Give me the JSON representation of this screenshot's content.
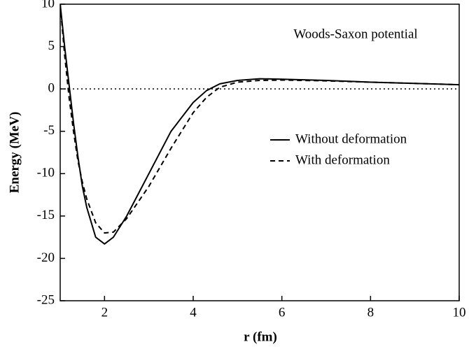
{
  "chart_data": {
    "type": "line",
    "annotation": "Woods-Saxon potential",
    "xlabel": "r (fm)",
    "ylabel": "Energy (MeV)",
    "x": [
      1,
      1.1,
      1.2,
      1.3,
      1.4,
      1.5,
      1.6,
      1.8,
      2.0,
      2.2,
      2.5,
      3,
      3.5,
      4,
      4.3,
      4.6,
      5,
      5.5,
      6,
      7,
      8,
      9,
      10
    ],
    "series": [
      {
        "name": "Without deformation",
        "color": "#000000",
        "dash": "solid",
        "values": [
          10,
          5,
          0.5,
          -4,
          -8,
          -11.5,
          -14,
          -17.5,
          -18.3,
          -17.5,
          -15,
          -10,
          -5,
          -1.6,
          -0.2,
          0.6,
          1.0,
          1.2,
          1.15,
          1.0,
          0.8,
          0.65,
          0.5
        ]
      },
      {
        "name": "With deformation",
        "color": "#000000",
        "dash": "dashed",
        "values": [
          10,
          4,
          -1,
          -5,
          -8.5,
          -11,
          -13,
          -15.8,
          -17,
          -16.9,
          -15.3,
          -11.5,
          -7,
          -2.8,
          -1,
          0.2,
          0.8,
          1.0,
          1.05,
          0.95,
          0.8,
          0.65,
          0.5
        ]
      }
    ],
    "hline": 0,
    "xlim": [
      1,
      10
    ],
    "xticks": [
      2,
      4,
      6,
      8,
      10
    ],
    "ylim": [
      -25,
      10
    ],
    "yticks": [
      -25,
      -20,
      -15,
      -10,
      -5,
      0,
      5,
      10
    ],
    "legend": "right"
  }
}
